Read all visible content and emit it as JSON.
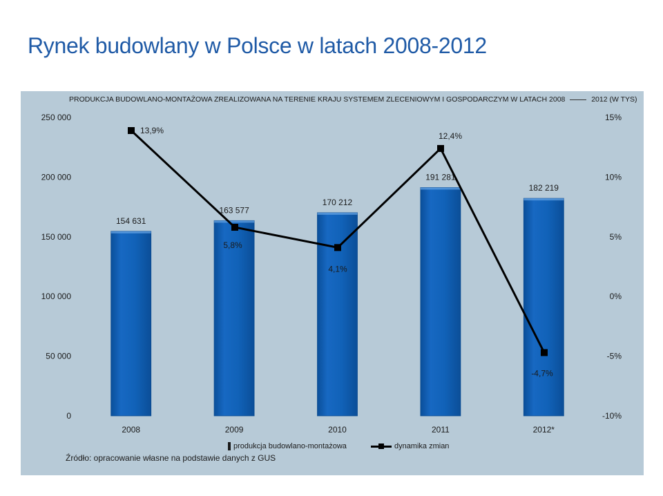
{
  "title": "Rynek budowlany w Polsce w latach 2008-2012",
  "chart_title_part1": "PRODUKCJA BUDOWLANO-MONTAŻOWA ZREALIZOWANA NA TERENIE KRAJU SYSTEMEM ZLECENIOWYM I GOSPODARCZYM W LATACH 2008",
  "chart_title_part2": "2012 (W TYS)",
  "source": "Źródło: opracowanie własne na podstawie danych z GUS",
  "colors": {
    "bar": "#1162b8",
    "line": "#000000",
    "panel": "#b7cad7",
    "title": "#1f5aa6"
  },
  "chart_data": {
    "type": "bar",
    "categories": [
      "2008",
      "2009",
      "2010",
      "2011",
      "2012*"
    ],
    "series": [
      {
        "name": "produkcja budowlano-montażowa",
        "type": "bar",
        "axis": "left",
        "values": [
          154631,
          163577,
          170212,
          191281,
          182219
        ],
        "labels": [
          "154 631",
          "163 577",
          "170 212",
          "191 281",
          "182 219"
        ]
      },
      {
        "name": "dynamika zmian",
        "type": "line",
        "axis": "right",
        "values": [
          13.9,
          5.8,
          4.1,
          12.4,
          -4.7
        ],
        "labels": [
          "13,9%",
          "5,8%",
          "4,1%",
          "12,4%",
          "-4,7%"
        ]
      }
    ],
    "y_left": {
      "range": [
        0,
        250000
      ],
      "ticks": [
        0,
        50000,
        100000,
        150000,
        200000,
        250000
      ],
      "tick_labels": [
        "0",
        "50 000",
        "100 000",
        "150 000",
        "200 000",
        "250 000"
      ]
    },
    "y_right": {
      "range": [
        -10,
        15
      ],
      "ticks": [
        -10,
        -5,
        0,
        5,
        10,
        15
      ],
      "tick_labels": [
        "-10%",
        "-5%",
        "0%",
        "5%",
        "10%",
        "15%"
      ]
    },
    "grid": false,
    "legend": "bottom"
  }
}
